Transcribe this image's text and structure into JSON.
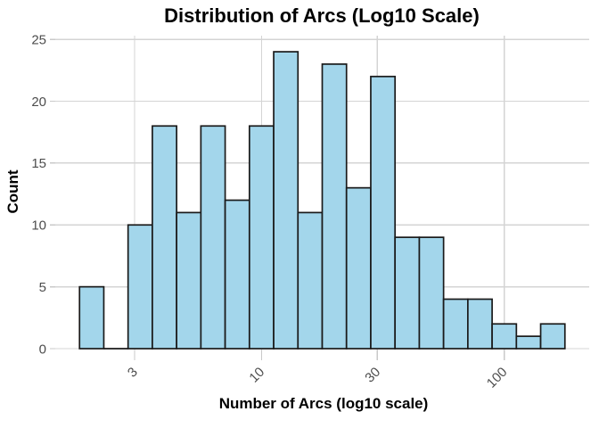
{
  "chart_data": {
    "type": "histogram",
    "title": "Distribution of Arcs (Log10 Scale)",
    "xlabel": "Number of Arcs (log10 scale)",
    "ylabel": "Count",
    "x_scale": "log10",
    "bins": {
      "start_log10": 0.25,
      "width_log10": 0.1,
      "counts": [
        5,
        0,
        10,
        18,
        11,
        18,
        12,
        18,
        24,
        11,
        23,
        13,
        22,
        9,
        9,
        4,
        4,
        2,
        1,
        2
      ]
    },
    "total_count": 216,
    "x_ticks": [
      3,
      10,
      30,
      100
    ],
    "x_tick_labels": [
      "3",
      "10",
      "30",
      "100"
    ],
    "y_ticks": [
      0,
      5,
      10,
      15,
      20,
      25
    ],
    "xlim_log10": [
      0.15,
      2.35
    ],
    "ylim": [
      0,
      25.3
    ],
    "grid": "major-only",
    "legend": "none",
    "colors": {
      "bar_fill": "#A3D6EB",
      "bar_stroke": "#1A1A1A",
      "gridline": "#D4D4D4",
      "tick_mark": "#C9C9C9",
      "tick_label": "#4D4D4D",
      "axis_title": "#000000",
      "background": "#FFFFFF"
    }
  }
}
